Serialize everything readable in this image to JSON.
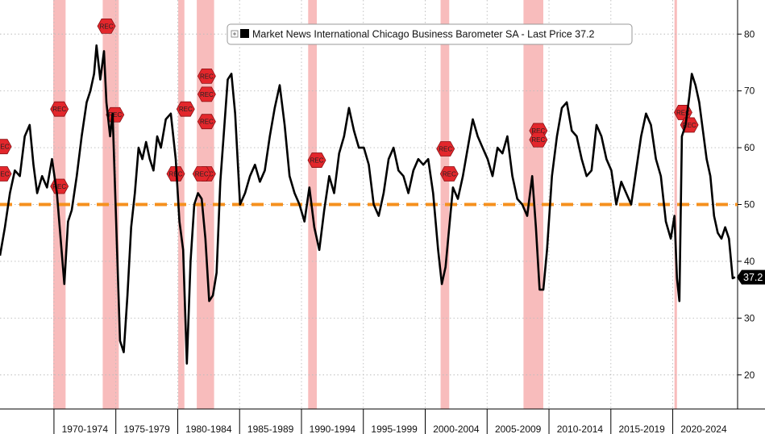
{
  "chart_data": {
    "type": "line",
    "title": "Market News International Chicago Business Barometer SA - Last Price 37.2",
    "legend": {
      "label": "Market News International Chicago Business Barometer SA - Last Price 37.2",
      "placement": "top-right"
    },
    "last_price": 37.2,
    "last_price_label": "37.2",
    "threshold": 50,
    "colors": {
      "line": "#000000",
      "threshold": "#f5901e",
      "recession": "#f6a6a6",
      "rec_marker": "#e3272c"
    },
    "xlim": [
      1965.6,
      2025.2
    ],
    "ylim": [
      14,
      86
    ],
    "y_ticks": [
      20,
      30,
      40,
      50,
      60,
      70,
      80
    ],
    "x_periods": [
      "1970-1974",
      "1975-1979",
      "1980-1984",
      "1985-1989",
      "1990-1994",
      "1995-1999",
      "2000-2004",
      "2005-2009",
      "2010-2014",
      "2015-2019",
      "2020-2024"
    ],
    "recessions": [
      [
        1969.9,
        1970.9
      ],
      [
        1973.9,
        1975.2
      ],
      [
        1980.0,
        1980.5
      ],
      [
        1981.5,
        1982.9
      ],
      [
        1990.5,
        1991.2
      ],
      [
        2001.2,
        2001.9
      ],
      [
        2007.9,
        2009.5
      ],
      [
        2020.1,
        2020.3
      ]
    ],
    "rec_label": "REC",
    "rec_markers": [
      [
        1965.8,
        60.2
      ],
      [
        1965.8,
        55.4
      ],
      [
        1970.4,
        66.8
      ],
      [
        1970.4,
        53.2
      ],
      [
        1974.2,
        81.4
      ],
      [
        1974.9,
        65.8
      ],
      [
        1979.8,
        55.4
      ],
      [
        1980.6,
        66.8
      ],
      [
        1982.3,
        72.6
      ],
      [
        1982.3,
        69.4
      ],
      [
        1982.3,
        55.4
      ],
      [
        1981.9,
        55.4
      ],
      [
        1982.3,
        64.6
      ],
      [
        1991.2,
        57.8
      ],
      [
        2001.6,
        59.8
      ],
      [
        2001.9,
        55.4
      ],
      [
        2009.1,
        63.0
      ],
      [
        2009.1,
        61.4
      ],
      [
        2020.8,
        66.2
      ],
      [
        2021.3,
        64.0
      ]
    ],
    "series": [
      {
        "name": "Chicago Business Barometer SA",
        "x": [
          1965.6,
          1966.0,
          1966.4,
          1966.8,
          1967.2,
          1967.6,
          1968.0,
          1968.3,
          1968.6,
          1969.0,
          1969.4,
          1969.8,
          1970.2,
          1970.5,
          1970.8,
          1971.1,
          1971.4,
          1971.8,
          1972.2,
          1972.6,
          1972.9,
          1973.2,
          1973.4,
          1973.7,
          1974.0,
          1974.2,
          1974.5,
          1974.7,
          1975.0,
          1975.3,
          1975.6,
          1975.9,
          1976.2,
          1976.5,
          1976.8,
          1977.1,
          1977.4,
          1977.7,
          1978.0,
          1978.3,
          1978.6,
          1979.0,
          1979.4,
          1979.8,
          1980.1,
          1980.4,
          1980.7,
          1981.0,
          1981.3,
          1981.6,
          1981.9,
          1982.2,
          1982.5,
          1982.8,
          1983.1,
          1983.4,
          1983.7,
          1984.0,
          1984.3,
          1984.6,
          1985.0,
          1985.4,
          1985.8,
          1986.2,
          1986.6,
          1987.0,
          1987.4,
          1987.8,
          1988.2,
          1988.6,
          1989.0,
          1989.4,
          1989.8,
          1990.2,
          1990.6,
          1991.0,
          1991.4,
          1991.8,
          1992.2,
          1992.6,
          1993.0,
          1993.4,
          1993.8,
          1994.2,
          1994.6,
          1995.0,
          1995.4,
          1995.8,
          1996.2,
          1996.6,
          1997.0,
          1997.4,
          1997.8,
          1998.2,
          1998.6,
          1999.0,
          1999.4,
          1999.8,
          2000.2,
          2000.6,
          2001.0,
          2001.3,
          2001.6,
          2001.9,
          2002.2,
          2002.6,
          2003.0,
          2003.4,
          2003.8,
          2004.2,
          2004.6,
          2005.0,
          2005.4,
          2005.8,
          2006.2,
          2006.6,
          2007.0,
          2007.4,
          2007.8,
          2008.2,
          2008.6,
          2008.9,
          2009.2,
          2009.5,
          2009.8,
          2010.2,
          2010.6,
          2011.0,
          2011.4,
          2011.8,
          2012.2,
          2012.6,
          2013.0,
          2013.4,
          2013.8,
          2014.2,
          2014.6,
          2015.0,
          2015.4,
          2015.8,
          2016.2,
          2016.6,
          2017.0,
          2017.4,
          2017.8,
          2018.2,
          2018.6,
          2019.0,
          2019.4,
          2019.8,
          2020.1,
          2020.3,
          2020.5,
          2020.7,
          2021.0,
          2021.3,
          2021.5,
          2021.8,
          2022.1,
          2022.4,
          2022.7,
          2023.0,
          2023.3,
          2023.6,
          2023.9,
          2024.2,
          2024.5,
          2024.8,
          2025.0
        ],
        "values": [
          41,
          46,
          52,
          56,
          55,
          62,
          64,
          57,
          52,
          55,
          53,
          58,
          52,
          44,
          36,
          47,
          49,
          55,
          62,
          68,
          70,
          73,
          78,
          72,
          77,
          68,
          62,
          66,
          46,
          26,
          24,
          34,
          46,
          52,
          60,
          58,
          61,
          58,
          56,
          62,
          60,
          65,
          66,
          58,
          47,
          42,
          22,
          40,
          50,
          52,
          51,
          44,
          33,
          34,
          38,
          54,
          63,
          72,
          73,
          66,
          50,
          52,
          55,
          57,
          54,
          56,
          62,
          67,
          71,
          64,
          55,
          52,
          50,
          47,
          53,
          46,
          42,
          49,
          55,
          52,
          59,
          62,
          67,
          63,
          60,
          60,
          57,
          50,
          48,
          52,
          58,
          60,
          56,
          55,
          52,
          56,
          58,
          57,
          58,
          52,
          42,
          36,
          39,
          46,
          53,
          51,
          55,
          60,
          65,
          62,
          60,
          58,
          55,
          60,
          59,
          62,
          55,
          51,
          50,
          48,
          55,
          46,
          35,
          35,
          42,
          55,
          62,
          67,
          68,
          63,
          62,
          58,
          55,
          56,
          64,
          62,
          58,
          56,
          50,
          54,
          52,
          50,
          56,
          62,
          66,
          64,
          58,
          55,
          47,
          44,
          48,
          37,
          33,
          62,
          64,
          69,
          73,
          71,
          68,
          63,
          58,
          55,
          48,
          45,
          44,
          46,
          44,
          37,
          37.2
        ]
      }
    ]
  }
}
